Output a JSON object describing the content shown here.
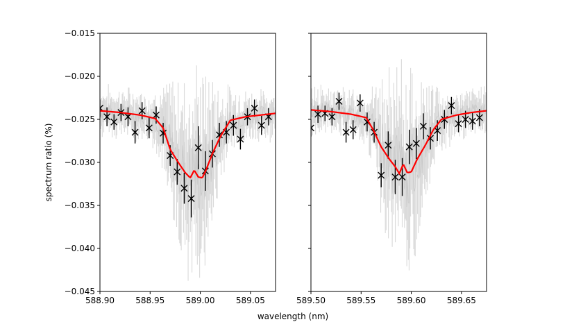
{
  "chart_data": [
    {
      "type": "scatter",
      "panel": "left",
      "ylabel": "spectrum ratio (%)",
      "xlim": [
        588.9,
        589.075
      ],
      "ylim": [
        -0.045,
        -0.015
      ],
      "xticks": [
        588.9,
        588.95,
        589.0,
        589.05
      ],
      "xtick_labels": [
        "588.90",
        "588.95",
        "589.00",
        "589.05"
      ],
      "yticks": [
        -0.045,
        -0.04,
        -0.035,
        -0.03,
        -0.025,
        -0.02,
        -0.015
      ],
      "ytick_labels": [
        "−0.045",
        "−0.040",
        "−0.035",
        "−0.030",
        "−0.025",
        "−0.020",
        "−0.015"
      ],
      "binned_points": {
        "x": [
          588.9,
          588.907,
          588.914,
          588.921,
          588.928,
          588.935,
          588.942,
          588.949,
          588.956,
          588.963,
          588.97,
          588.977,
          588.984,
          588.991,
          588.998,
          589.005,
          589.012,
          589.019,
          589.026,
          589.033,
          589.04,
          589.047,
          589.054,
          589.061,
          589.068
        ],
        "y": [
          -0.0237,
          -0.0247,
          -0.0253,
          -0.0242,
          -0.0247,
          -0.0265,
          -0.024,
          -0.026,
          -0.0245,
          -0.0266,
          -0.0292,
          -0.0311,
          -0.033,
          -0.0342,
          -0.0283,
          -0.031,
          -0.029,
          -0.0268,
          -0.0265,
          -0.0257,
          -0.0273,
          -0.0247,
          -0.0237,
          -0.0257,
          -0.0247
        ],
        "yerr": [
          0.001,
          0.0011,
          0.0009,
          0.001,
          0.0011,
          0.0013,
          0.001,
          0.0012,
          0.001,
          0.0012,
          0.0012,
          0.0015,
          0.0018,
          0.0022,
          0.0025,
          0.0023,
          0.0016,
          0.0014,
          0.0013,
          0.0012,
          0.0012,
          0.001,
          0.001,
          0.0011,
          0.001
        ]
      },
      "model_line": {
        "color": "#ff0000",
        "x": [
          588.9,
          588.92,
          588.94,
          588.955,
          588.963,
          588.97,
          588.978,
          588.985,
          588.99,
          588.994,
          588.998,
          589.002,
          589.006,
          589.012,
          589.02,
          589.03,
          589.045,
          589.06,
          589.075
        ],
        "y": [
          -0.024,
          -0.0242,
          -0.0245,
          -0.0249,
          -0.026,
          -0.0285,
          -0.03,
          -0.0312,
          -0.0318,
          -0.0309,
          -0.0317,
          -0.0318,
          -0.0308,
          -0.029,
          -0.027,
          -0.0251,
          -0.0247,
          -0.0245,
          -0.0243
        ]
      },
      "raw_band_color": "#d9d9d9"
    },
    {
      "type": "scatter",
      "panel": "right",
      "xlim": [
        589.5,
        589.675
      ],
      "ylim": [
        -0.045,
        -0.015
      ],
      "xticks": [
        589.5,
        589.55,
        589.6,
        589.65
      ],
      "xtick_labels": [
        "589.50",
        "589.55",
        "589.60",
        "589.65"
      ],
      "binned_points": {
        "x": [
          589.5,
          589.507,
          589.514,
          589.521,
          589.528,
          589.535,
          589.542,
          589.549,
          589.556,
          589.563,
          589.57,
          589.577,
          589.584,
          589.591,
          589.598,
          589.605,
          589.612,
          589.619,
          589.626,
          589.633,
          589.64,
          589.647,
          589.654,
          589.661,
          589.668
        ],
        "y": [
          -0.026,
          -0.0244,
          -0.0243,
          -0.0247,
          -0.0229,
          -0.0265,
          -0.0262,
          -0.0231,
          -0.0253,
          -0.0265,
          -0.0315,
          -0.028,
          -0.0317,
          -0.0317,
          -0.0282,
          -0.0278,
          -0.0258,
          -0.0272,
          -0.0263,
          -0.025,
          -0.0234,
          -0.0255,
          -0.025,
          -0.0252,
          -0.0248
        ],
        "yerr": [
          0.001,
          0.001,
          0.0009,
          0.001,
          0.001,
          0.0012,
          0.0011,
          0.001,
          0.0011,
          0.0012,
          0.0014,
          0.0016,
          0.002,
          0.0022,
          0.002,
          0.0018,
          0.0015,
          0.0013,
          0.0012,
          0.0011,
          0.001,
          0.001,
          0.001,
          0.001,
          0.001
        ]
      },
      "model_line": {
        "color": "#ff0000",
        "x": [
          589.5,
          589.52,
          589.54,
          589.555,
          589.562,
          589.57,
          589.578,
          589.584,
          589.588,
          589.592,
          589.596,
          589.6,
          589.606,
          589.614,
          589.622,
          589.63,
          589.645,
          589.66,
          589.675
        ],
        "y": [
          -0.0239,
          -0.0241,
          -0.0244,
          -0.0248,
          -0.0262,
          -0.0282,
          -0.0296,
          -0.0305,
          -0.0313,
          -0.0302,
          -0.0312,
          -0.0311,
          -0.0296,
          -0.028,
          -0.0262,
          -0.025,
          -0.0245,
          -0.0242,
          -0.024
        ]
      },
      "raw_band_color": "#d9d9d9"
    }
  ],
  "shared_xlabel": "wavelength (nm)"
}
